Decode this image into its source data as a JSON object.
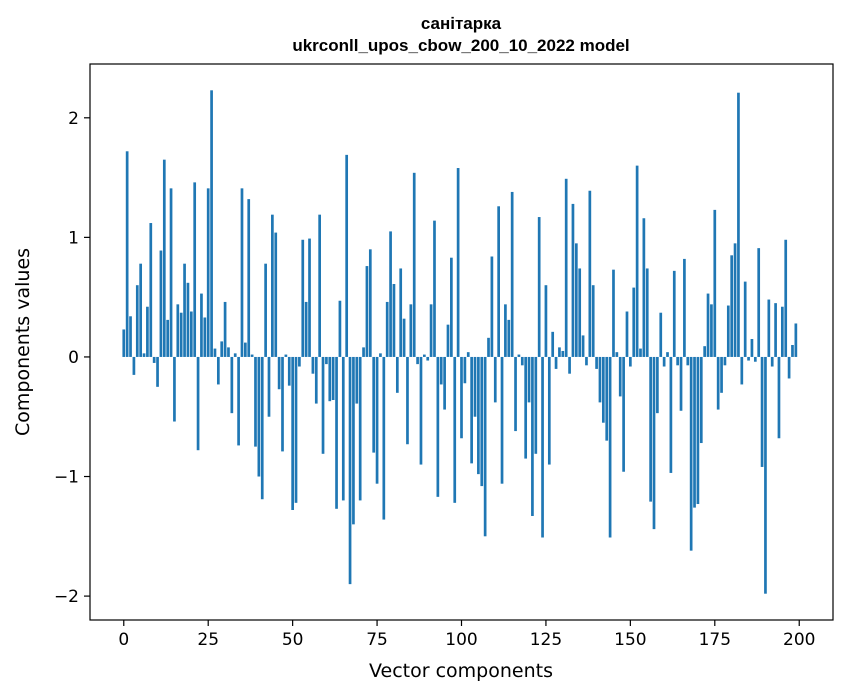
{
  "chart_data": {
    "type": "bar",
    "title": "санітарка",
    "subtitle": "ukrconll_upos_cbow_200_10_2022 model",
    "xlabel": "Vector components",
    "ylabel": "Components values",
    "xlim": [
      -10,
      210
    ],
    "ylim": [
      -2.2,
      2.45
    ],
    "x_ticks": [
      0,
      25,
      50,
      75,
      100,
      125,
      150,
      175,
      200
    ],
    "y_ticks": [
      -2,
      -1,
      0,
      1,
      2
    ],
    "x_tick_labels": [
      "0",
      "25",
      "50",
      "75",
      "100",
      "125",
      "150",
      "175",
      "200"
    ],
    "y_tick_labels": [
      "−2",
      "−1",
      "0",
      "1",
      "2"
    ],
    "grid": false,
    "bar_color": "#1f77b4",
    "values": [
      0.23,
      1.72,
      0.34,
      -0.15,
      0.6,
      0.78,
      0.03,
      0.42,
      1.12,
      -0.05,
      -0.25,
      0.89,
      1.65,
      0.31,
      1.41,
      -0.54,
      0.44,
      0.37,
      0.78,
      0.62,
      0.38,
      1.46,
      -0.78,
      0.53,
      0.33,
      1.41,
      2.23,
      0.07,
      -0.23,
      0.13,
      0.46,
      0.08,
      -0.47,
      0.03,
      -0.74,
      1.41,
      0.12,
      1.32,
      0.02,
      -0.75,
      -1.0,
      -1.19,
      0.78,
      -0.5,
      1.19,
      1.04,
      -0.27,
      -0.79,
      0.02,
      -0.24,
      -1.28,
      -1.22,
      -0.08,
      0.98,
      0.46,
      0.99,
      -0.14,
      -0.39,
      1.19,
      -0.81,
      -0.06,
      -0.37,
      -0.36,
      -1.27,
      0.47,
      -1.2,
      1.69,
      -1.9,
      -1.4,
      -0.39,
      -1.2,
      0.08,
      0.76,
      0.9,
      -0.8,
      -1.06,
      0.03,
      -1.36,
      0.46,
      1.05,
      0.61,
      -0.3,
      0.74,
      0.32,
      -0.73,
      0.44,
      1.54,
      -0.06,
      -0.9,
      0.02,
      -0.03,
      0.44,
      1.14,
      -1.17,
      -0.23,
      -0.44,
      0.27,
      0.83,
      -1.22,
      1.58,
      -0.68,
      -0.22,
      0.04,
      -0.89,
      -0.5,
      -0.98,
      -1.08,
      -1.5,
      0.16,
      0.84,
      -0.38,
      1.26,
      -1.06,
      0.44,
      0.31,
      1.38,
      -0.62,
      0.02,
      -0.07,
      -0.85,
      -0.38,
      -1.33,
      -0.81,
      1.17,
      -1.51,
      0.6,
      -0.9,
      0.21,
      -0.1,
      0.08,
      0.05,
      1.49,
      -0.14,
      1.28,
      0.95,
      0.74,
      0.18,
      -0.07,
      1.39,
      0.6,
      -0.1,
      -0.38,
      -0.55,
      -0.7,
      -1.51,
      0.73,
      0.04,
      -0.33,
      -0.96,
      0.38,
      -0.08,
      0.58,
      1.6,
      0.07,
      1.16,
      0.74,
      -1.21,
      -1.44,
      -0.47,
      0.37,
      -0.08,
      0.04,
      -0.97,
      0.72,
      -0.07,
      -0.45,
      0.82,
      -0.07,
      -1.62,
      -1.26,
      -1.23,
      -0.72,
      0.09,
      0.53,
      0.44,
      1.23,
      -0.44,
      -0.3,
      -0.07,
      0.43,
      0.85,
      0.95,
      2.21,
      -0.23,
      0.63,
      -0.03,
      0.15,
      -0.04,
      0.91,
      -0.92,
      -1.98,
      0.48,
      -0.08,
      0.45,
      -0.68,
      0.42,
      0.98,
      -0.18,
      0.1,
      0.28
    ]
  }
}
